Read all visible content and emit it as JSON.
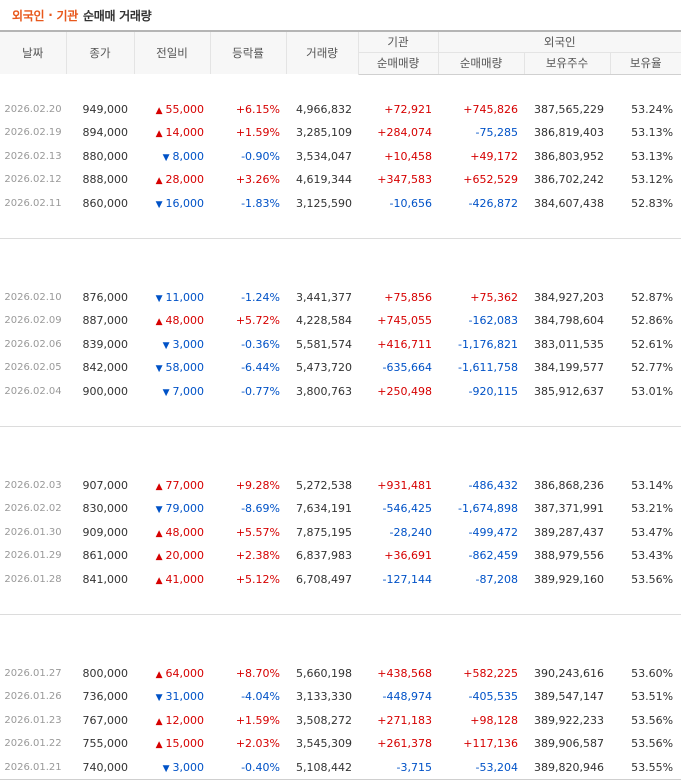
{
  "title": {
    "part1": "외국인",
    "sep": "·",
    "part2": "기관",
    "rest": "순매매 거래량"
  },
  "headers": {
    "date": "날짜",
    "close": "종가",
    "change": "전일비",
    "rate": "등락률",
    "volume": "거래량",
    "inst_group": "기관",
    "foreign_group": "외국인",
    "inst_net": "순매매량",
    "foreign_net": "순매매량",
    "foreign_hold": "보유주수",
    "foreign_ratio": "보유율"
  },
  "groups": [
    {
      "rows": [
        {
          "date": "2026.02.20",
          "close": "949,000",
          "dir": "up",
          "change": "55,000",
          "rate": "+6.15%",
          "volume": "4,966,832",
          "inst": "+72,921",
          "foreign": "+745,826",
          "hold": "387,565,229",
          "ratio": "53.24%"
        },
        {
          "date": "2026.02.19",
          "close": "894,000",
          "dir": "up",
          "change": "14,000",
          "rate": "+1.59%",
          "volume": "3,285,109",
          "inst": "+284,074",
          "foreign": "-75,285",
          "hold": "386,819,403",
          "ratio": "53.13%"
        },
        {
          "date": "2026.02.13",
          "close": "880,000",
          "dir": "down",
          "change": "8,000",
          "rate": "-0.90%",
          "volume": "3,534,047",
          "inst": "+10,458",
          "foreign": "+49,172",
          "hold": "386,803,952",
          "ratio": "53.13%"
        },
        {
          "date": "2026.02.12",
          "close": "888,000",
          "dir": "up",
          "change": "28,000",
          "rate": "+3.26%",
          "volume": "4,619,344",
          "inst": "+347,583",
          "foreign": "+652,529",
          "hold": "386,702,242",
          "ratio": "53.12%"
        },
        {
          "date": "2026.02.11",
          "close": "860,000",
          "dir": "down",
          "change": "16,000",
          "rate": "-1.83%",
          "volume": "3,125,590",
          "inst": "-10,656",
          "foreign": "-426,872",
          "hold": "384,607,438",
          "ratio": "52.83%"
        }
      ]
    },
    {
      "rows": [
        {
          "date": "2026.02.10",
          "close": "876,000",
          "dir": "down",
          "change": "11,000",
          "rate": "-1.24%",
          "volume": "3,441,377",
          "inst": "+75,856",
          "foreign": "+75,362",
          "hold": "384,927,203",
          "ratio": "52.87%"
        },
        {
          "date": "2026.02.09",
          "close": "887,000",
          "dir": "up",
          "change": "48,000",
          "rate": "+5.72%",
          "volume": "4,228,584",
          "inst": "+745,055",
          "foreign": "-162,083",
          "hold": "384,798,604",
          "ratio": "52.86%"
        },
        {
          "date": "2026.02.06",
          "close": "839,000",
          "dir": "down",
          "change": "3,000",
          "rate": "-0.36%",
          "volume": "5,581,574",
          "inst": "+416,711",
          "foreign": "-1,176,821",
          "hold": "383,011,535",
          "ratio": "52.61%"
        },
        {
          "date": "2026.02.05",
          "close": "842,000",
          "dir": "down",
          "change": "58,000",
          "rate": "-6.44%",
          "volume": "5,473,720",
          "inst": "-635,664",
          "foreign": "-1,611,758",
          "hold": "384,199,577",
          "ratio": "52.77%"
        },
        {
          "date": "2026.02.04",
          "close": "900,000",
          "dir": "down",
          "change": "7,000",
          "rate": "-0.77%",
          "volume": "3,800,763",
          "inst": "+250,498",
          "foreign": "-920,115",
          "hold": "385,912,637",
          "ratio": "53.01%"
        }
      ]
    },
    {
      "rows": [
        {
          "date": "2026.02.03",
          "close": "907,000",
          "dir": "up",
          "change": "77,000",
          "rate": "+9.28%",
          "volume": "5,272,538",
          "inst": "+931,481",
          "foreign": "-486,432",
          "hold": "386,868,236",
          "ratio": "53.14%"
        },
        {
          "date": "2026.02.02",
          "close": "830,000",
          "dir": "down",
          "change": "79,000",
          "rate": "-8.69%",
          "volume": "7,634,191",
          "inst": "-546,425",
          "foreign": "-1,674,898",
          "hold": "387,371,991",
          "ratio": "53.21%"
        },
        {
          "date": "2026.01.30",
          "close": "909,000",
          "dir": "up",
          "change": "48,000",
          "rate": "+5.57%",
          "volume": "7,875,195",
          "inst": "-28,240",
          "foreign": "-499,472",
          "hold": "389,287,437",
          "ratio": "53.47%"
        },
        {
          "date": "2026.01.29",
          "close": "861,000",
          "dir": "up",
          "change": "20,000",
          "rate": "+2.38%",
          "volume": "6,837,983",
          "inst": "+36,691",
          "foreign": "-862,459",
          "hold": "388,979,556",
          "ratio": "53.43%"
        },
        {
          "date": "2026.01.28",
          "close": "841,000",
          "dir": "up",
          "change": "41,000",
          "rate": "+5.12%",
          "volume": "6,708,497",
          "inst": "-127,144",
          "foreign": "-87,208",
          "hold": "389,929,160",
          "ratio": "53.56%"
        }
      ]
    },
    {
      "rows": [
        {
          "date": "2026.01.27",
          "close": "800,000",
          "dir": "up",
          "change": "64,000",
          "rate": "+8.70%",
          "volume": "5,660,198",
          "inst": "+438,568",
          "foreign": "+582,225",
          "hold": "390,243,616",
          "ratio": "53.60%"
        },
        {
          "date": "2026.01.26",
          "close": "736,000",
          "dir": "down",
          "change": "31,000",
          "rate": "-4.04%",
          "volume": "3,133,330",
          "inst": "-448,974",
          "foreign": "-405,535",
          "hold": "389,547,147",
          "ratio": "53.51%"
        },
        {
          "date": "2026.01.23",
          "close": "767,000",
          "dir": "up",
          "change": "12,000",
          "rate": "+1.59%",
          "volume": "3,508,272",
          "inst": "+271,183",
          "foreign": "+98,128",
          "hold": "389,922,233",
          "ratio": "53.56%"
        },
        {
          "date": "2026.01.22",
          "close": "755,000",
          "dir": "up",
          "change": "15,000",
          "rate": "+2.03%",
          "volume": "3,545,309",
          "inst": "+261,378",
          "foreign": "+117,136",
          "hold": "389,906,587",
          "ratio": "53.56%"
        },
        {
          "date": "2026.01.21",
          "close": "740,000",
          "dir": "down",
          "change": "3,000",
          "rate": "-0.40%",
          "volume": "5,108,442",
          "inst": "-3,715",
          "foreign": "-53,204",
          "hold": "389,820,946",
          "ratio": "53.55%"
        }
      ]
    }
  ],
  "colors": {
    "up": "#d60000",
    "down": "#0052c7",
    "title_accent": "#e8581c",
    "header_bg": "#f7f7f7"
  }
}
